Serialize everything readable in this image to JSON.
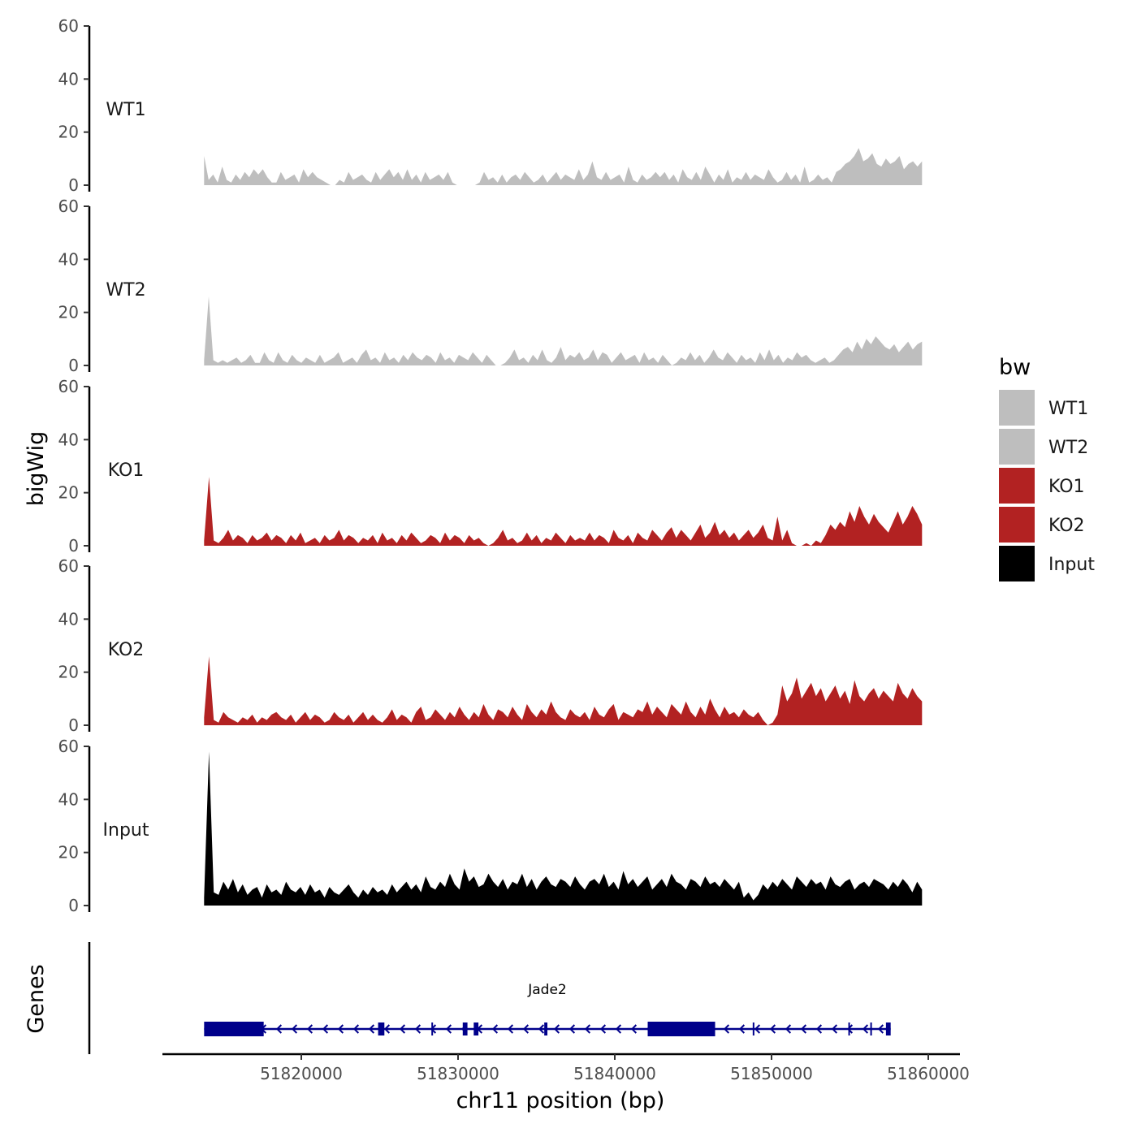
{
  "chart_data": {
    "type": "area",
    "xlabel": "chr11 position (bp)",
    "ylabel": "bigWig",
    "gene_panel_label": "Genes",
    "xlim": [
      51812000,
      51861000
    ],
    "ylim": [
      0,
      60
    ],
    "y_ticks": [
      0,
      20,
      40,
      60
    ],
    "y_tick_labels": [
      "0",
      "20",
      "40",
      "60"
    ],
    "x_ticks": [
      51820000,
      51830000,
      51840000,
      51850000,
      51860000
    ],
    "x_tick_labels": [
      "51820000",
      "51830000",
      "51840000",
      "51850000",
      "51860000"
    ],
    "data_range": [
      51813800,
      51859600
    ],
    "grid": false,
    "legend": {
      "title": "bw",
      "placement": "right",
      "entries": [
        {
          "label": "WT1",
          "color": "#bebebe"
        },
        {
          "label": "WT2",
          "color": "#bebebe"
        },
        {
          "label": "KO1",
          "color": "#b22222"
        },
        {
          "label": "KO2",
          "color": "#b22222"
        },
        {
          "label": "Input",
          "color": "#000000"
        }
      ]
    },
    "series": [
      {
        "name": "WT1",
        "color": "#bebebe",
        "values": [
          11,
          2,
          4,
          1,
          7,
          2,
          1,
          4,
          2,
          5,
          3,
          6,
          4,
          6,
          3,
          1,
          1,
          5,
          2,
          3,
          4,
          1,
          6,
          3,
          5,
          3,
          2,
          1,
          0,
          0,
          2,
          1,
          5,
          2,
          3,
          4,
          2,
          1,
          5,
          2,
          4,
          6,
          3,
          5,
          2,
          6,
          2,
          4,
          1,
          5,
          2,
          3,
          4,
          2,
          5,
          1,
          0,
          0,
          0,
          0,
          0,
          1,
          5,
          2,
          3,
          1,
          4,
          1,
          3,
          4,
          2,
          5,
          3,
          1,
          2,
          4,
          1,
          3,
          5,
          2,
          4,
          3,
          2,
          6,
          2,
          4,
          9,
          3,
          2,
          5,
          2,
          3,
          4,
          1,
          7,
          2,
          1,
          4,
          2,
          3,
          5,
          3,
          5,
          2,
          4,
          1,
          6,
          3,
          2,
          5,
          2,
          7,
          4,
          1,
          4,
          2,
          6,
          1,
          3,
          2,
          5,
          2,
          4,
          3,
          2,
          6,
          3,
          1,
          2,
          5,
          2,
          4,
          1,
          7,
          1,
          2,
          4,
          2,
          3,
          1,
          5,
          6,
          8,
          9,
          11,
          14,
          9,
          10,
          12,
          8,
          7,
          10,
          8,
          9,
          11,
          6,
          8,
          9,
          7,
          9
        ]
      },
      {
        "name": "WT2",
        "color": "#bebebe",
        "values": [
          2,
          26,
          2,
          1,
          2,
          1,
          2,
          3,
          1,
          2,
          4,
          1,
          1,
          5,
          2,
          1,
          5,
          2,
          1,
          4,
          2,
          1,
          3,
          2,
          1,
          4,
          1,
          2,
          3,
          5,
          1,
          2,
          3,
          1,
          4,
          6,
          2,
          3,
          1,
          5,
          2,
          3,
          1,
          4,
          2,
          5,
          3,
          2,
          4,
          3,
          1,
          5,
          2,
          3,
          1,
          4,
          3,
          2,
          5,
          3,
          1,
          4,
          2,
          0,
          0,
          1,
          3,
          6,
          2,
          3,
          1,
          4,
          2,
          6,
          2,
          1,
          3,
          7,
          2,
          4,
          3,
          5,
          2,
          3,
          6,
          2,
          5,
          4,
          1,
          3,
          5,
          2,
          3,
          4,
          1,
          5,
          2,
          3,
          1,
          4,
          2,
          0,
          1,
          3,
          2,
          5,
          2,
          4,
          1,
          3,
          6,
          3,
          2,
          5,
          3,
          1,
          4,
          2,
          3,
          1,
          5,
          2,
          6,
          2,
          4,
          1,
          3,
          2,
          5,
          3,
          4,
          2,
          1,
          2,
          3,
          1,
          2,
          4,
          6,
          7,
          5,
          9,
          6,
          10,
          8,
          11,
          9,
          7,
          6,
          8,
          5,
          7,
          9,
          6,
          8,
          9
        ]
      },
      {
        "name": "KO1",
        "color": "#b22222",
        "values": [
          2,
          26,
          2,
          1,
          3,
          6,
          2,
          4,
          3,
          1,
          4,
          2,
          3,
          5,
          2,
          4,
          3,
          1,
          4,
          2,
          5,
          1,
          2,
          3,
          1,
          4,
          2,
          3,
          6,
          2,
          4,
          3,
          1,
          3,
          2,
          4,
          1,
          5,
          2,
          3,
          1,
          4,
          2,
          5,
          3,
          1,
          2,
          4,
          3,
          1,
          5,
          2,
          4,
          3,
          1,
          4,
          2,
          3,
          1,
          0,
          1,
          3,
          6,
          2,
          3,
          1,
          2,
          5,
          2,
          4,
          1,
          3,
          2,
          5,
          3,
          1,
          4,
          2,
          3,
          2,
          5,
          2,
          4,
          3,
          1,
          6,
          3,
          2,
          4,
          1,
          5,
          3,
          2,
          6,
          4,
          2,
          5,
          7,
          3,
          6,
          4,
          2,
          5,
          8,
          3,
          5,
          9,
          4,
          6,
          3,
          5,
          2,
          4,
          6,
          3,
          5,
          8,
          3,
          2,
          11,
          2,
          6,
          1,
          0,
          0,
          1,
          0,
          2,
          1,
          4,
          8,
          6,
          9,
          7,
          13,
          9,
          15,
          11,
          8,
          12,
          9,
          7,
          5,
          9,
          13,
          8,
          11,
          15,
          12,
          8
        ]
      },
      {
        "name": "KO2",
        "color": "#b22222",
        "values": [
          3,
          26,
          2,
          1,
          5,
          3,
          2,
          1,
          3,
          2,
          4,
          1,
          3,
          2,
          4,
          5,
          3,
          2,
          4,
          1,
          3,
          5,
          2,
          4,
          3,
          1,
          2,
          5,
          3,
          2,
          4,
          1,
          3,
          5,
          2,
          4,
          2,
          1,
          3,
          6,
          2,
          4,
          3,
          1,
          5,
          7,
          2,
          3,
          6,
          4,
          2,
          5,
          3,
          7,
          4,
          2,
          5,
          3,
          8,
          4,
          2,
          6,
          5,
          3,
          7,
          4,
          2,
          8,
          5,
          3,
          6,
          4,
          9,
          5,
          3,
          2,
          6,
          4,
          3,
          5,
          2,
          7,
          4,
          3,
          6,
          8,
          2,
          5,
          4,
          3,
          6,
          5,
          9,
          4,
          7,
          5,
          3,
          8,
          6,
          4,
          9,
          5,
          3,
          7,
          4,
          10,
          6,
          3,
          7,
          4,
          5,
          3,
          6,
          4,
          3,
          5,
          2,
          0,
          1,
          4,
          15,
          9,
          12,
          18,
          10,
          13,
          16,
          11,
          14,
          9,
          12,
          15,
          10,
          13,
          8,
          17,
          11,
          9,
          12,
          14,
          10,
          13,
          11,
          9,
          16,
          12,
          10,
          14,
          11,
          9
        ]
      },
      {
        "name": "Input",
        "color": "#000000",
        "values": [
          3,
          58,
          5,
          4,
          9,
          6,
          10,
          5,
          8,
          4,
          6,
          7,
          3,
          8,
          5,
          6,
          4,
          9,
          6,
          5,
          7,
          4,
          8,
          5,
          6,
          3,
          7,
          5,
          4,
          6,
          8,
          5,
          3,
          6,
          4,
          7,
          5,
          6,
          4,
          8,
          5,
          7,
          9,
          6,
          8,
          5,
          11,
          7,
          6,
          9,
          7,
          12,
          8,
          6,
          14,
          9,
          11,
          7,
          8,
          12,
          9,
          7,
          10,
          6,
          9,
          8,
          12,
          7,
          10,
          6,
          9,
          11,
          8,
          7,
          10,
          9,
          7,
          11,
          8,
          6,
          9,
          10,
          8,
          12,
          7,
          9,
          6,
          13,
          8,
          10,
          7,
          9,
          11,
          6,
          8,
          10,
          7,
          12,
          9,
          8,
          6,
          10,
          9,
          7,
          11,
          8,
          9,
          7,
          10,
          8,
          6,
          9,
          3,
          5,
          2,
          4,
          8,
          6,
          9,
          7,
          10,
          8,
          6,
          11,
          9,
          7,
          10,
          8,
          9,
          6,
          11,
          8,
          7,
          9,
          10,
          6,
          8,
          9,
          7,
          10,
          9,
          8,
          6,
          9,
          7,
          10,
          8,
          5,
          9,
          6
        ]
      }
    ],
    "genes": [
      {
        "name": "Jade2",
        "start": 51813800,
        "end": 51857600,
        "strand": "-",
        "color": "#00008b",
        "exons": [
          [
            51813800,
            51817600
          ],
          [
            51824900,
            51825300
          ],
          [
            51828300,
            51828400
          ],
          [
            51830300,
            51830600
          ],
          [
            51831000,
            51831300
          ],
          [
            51835500,
            51835700
          ],
          [
            51842100,
            51846400
          ],
          [
            51848800,
            51848900
          ],
          [
            51854900,
            51855000
          ],
          [
            51856300,
            51856400
          ],
          [
            51857300,
            51857600
          ]
        ]
      }
    ]
  }
}
